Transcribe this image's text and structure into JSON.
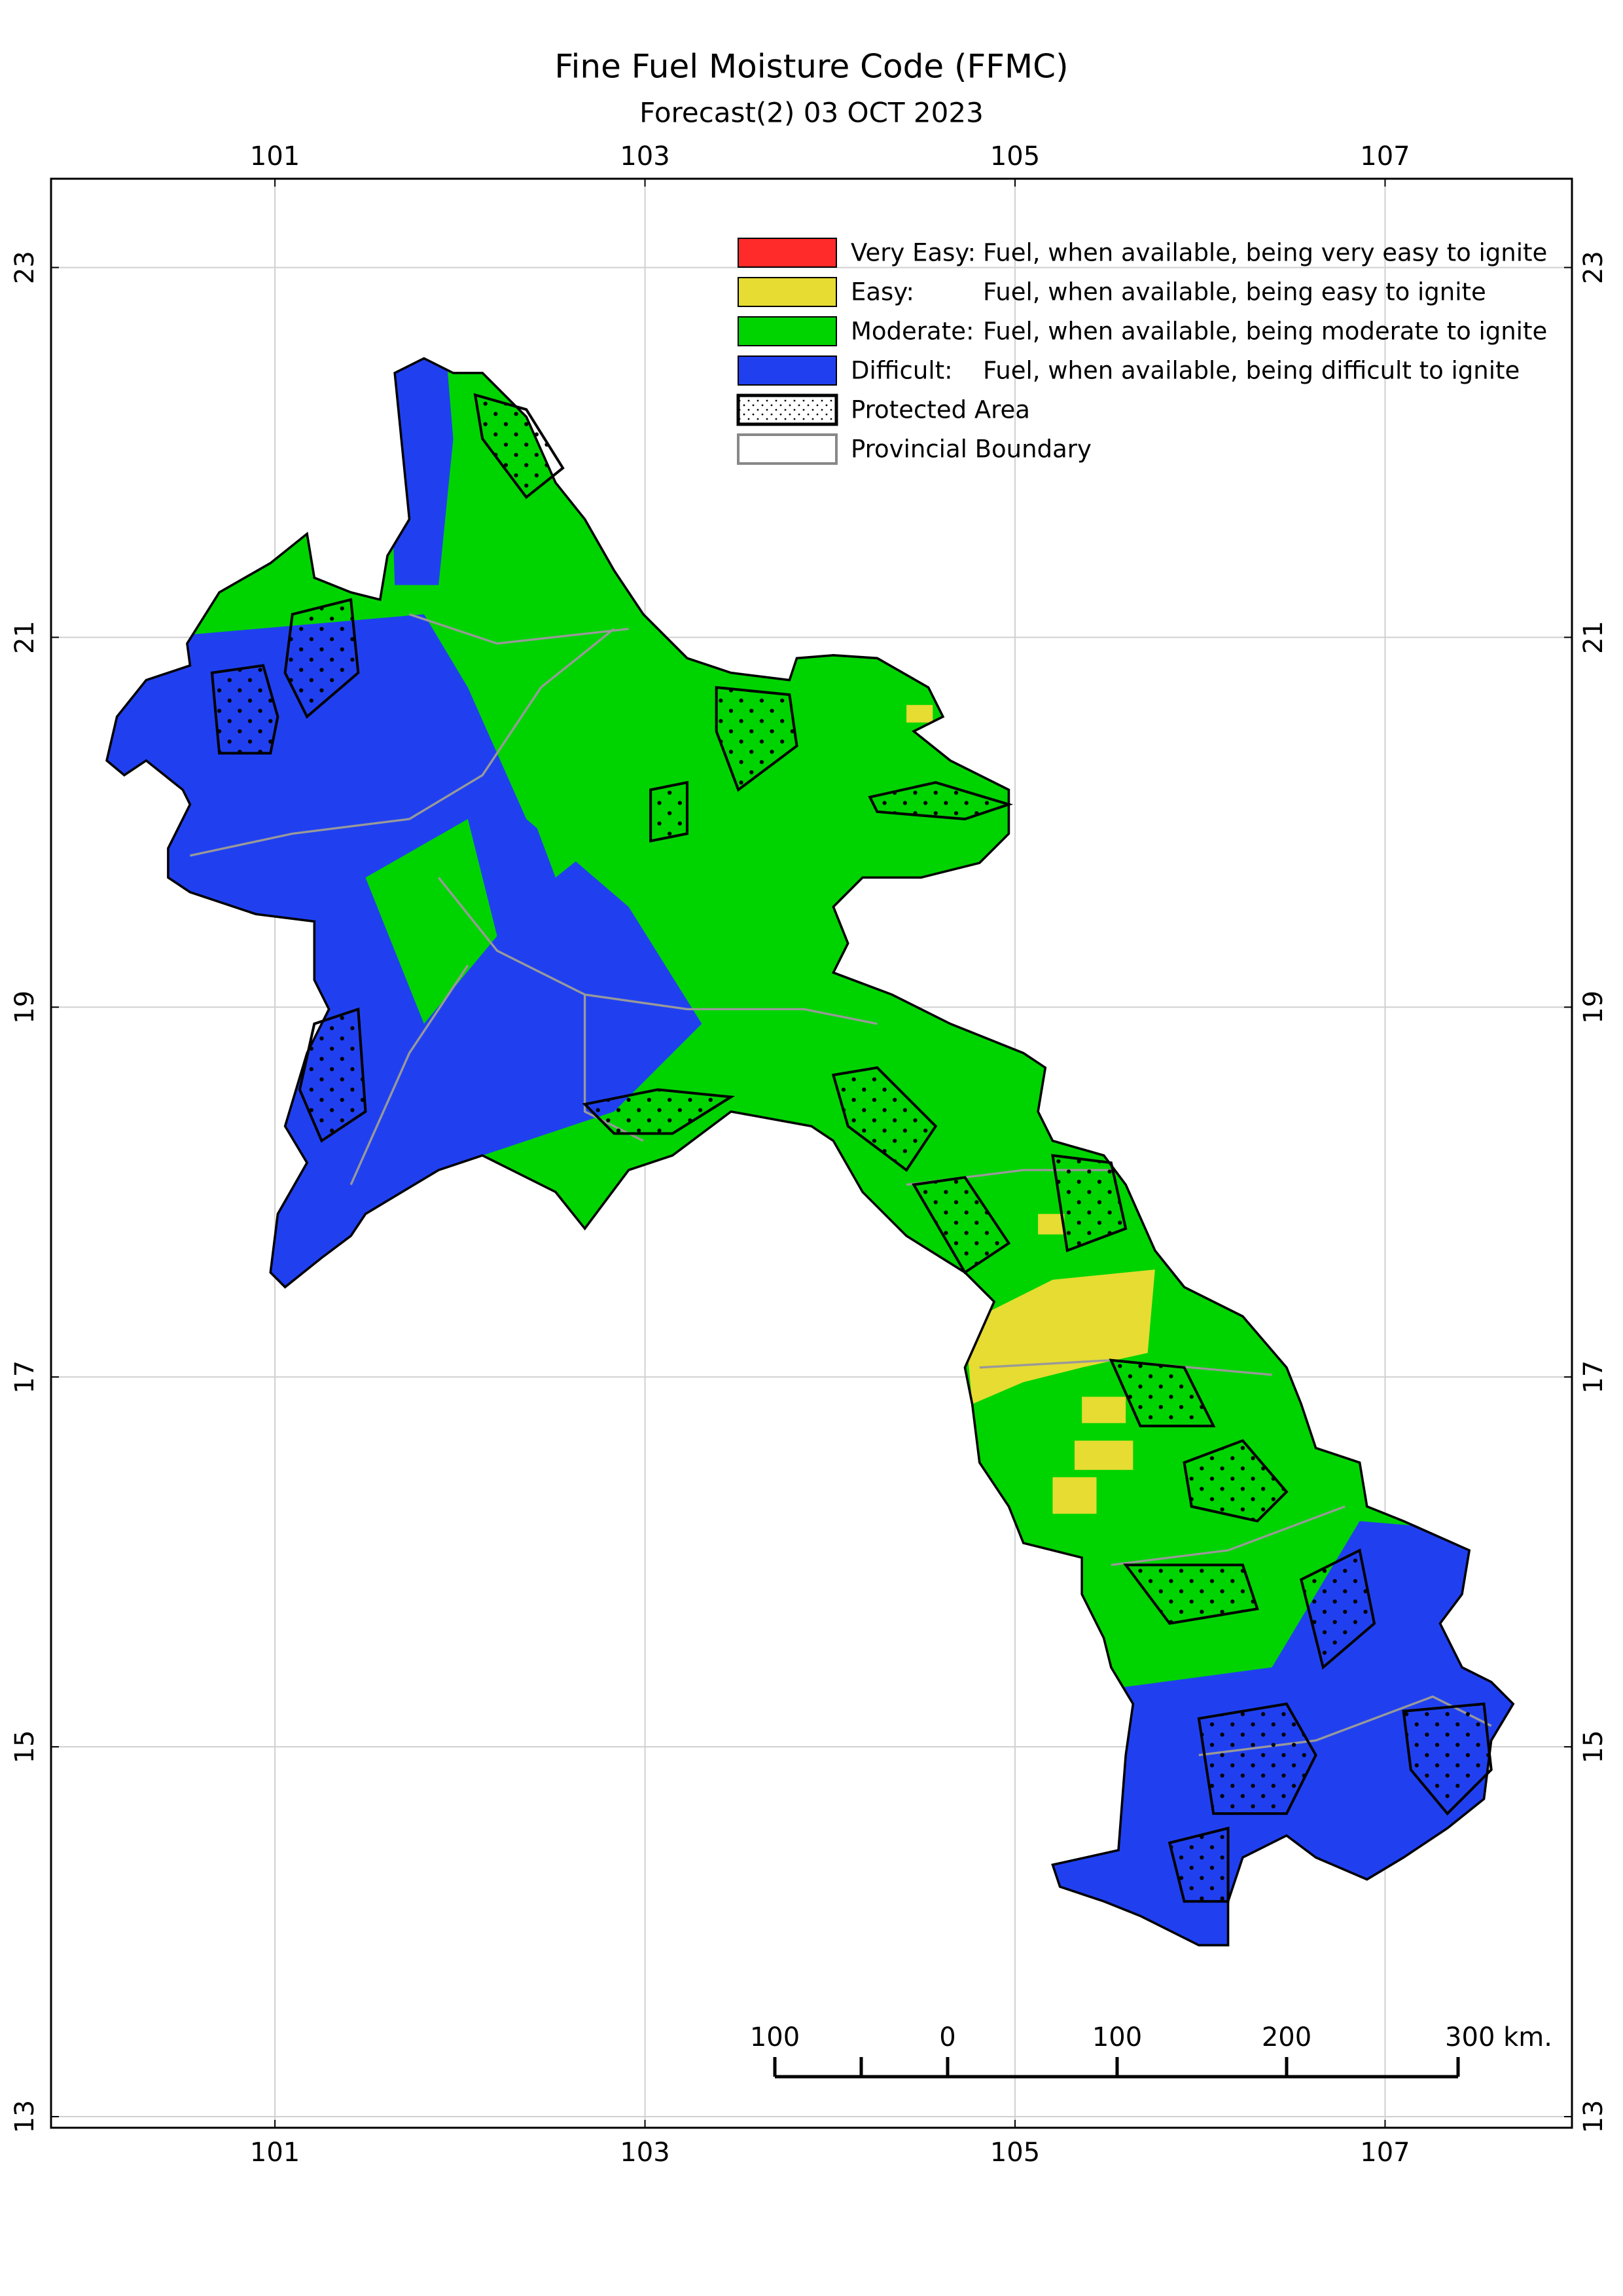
{
  "chart_data": {
    "type": "map",
    "title": "Fine Fuel Moisture Code (FFMC)",
    "subtitle": "Forecast(2) 03 OCT 2023",
    "xlim": [
      99.79,
      108.01
    ],
    "ylim": [
      12.94,
      23.48
    ],
    "xticks": [
      101,
      103,
      105,
      107
    ],
    "yticks": [
      13,
      15,
      17,
      19,
      21,
      23
    ],
    "grid": true,
    "legend": [
      {
        "label": "Very Easy:",
        "description": "Fuel, when available, being very easy to ignite",
        "color": "#ff2a2a"
      },
      {
        "label": "Easy:",
        "description": "Fuel, when available, being easy to ignite",
        "color": "#e6dc32"
      },
      {
        "label": "Moderate:",
        "description": "Fuel, when available, being moderate to ignite",
        "color": "#00d400"
      },
      {
        "label": "Difficult:",
        "description": "Fuel, when available, being difficult to ignite",
        "color": "#2040f0"
      },
      {
        "label": "Protected Area"
      },
      {
        "label": "Provincial Boundary"
      }
    ],
    "scale_bar": [
      "100",
      "0",
      "100",
      "200",
      "300 km."
    ]
  }
}
